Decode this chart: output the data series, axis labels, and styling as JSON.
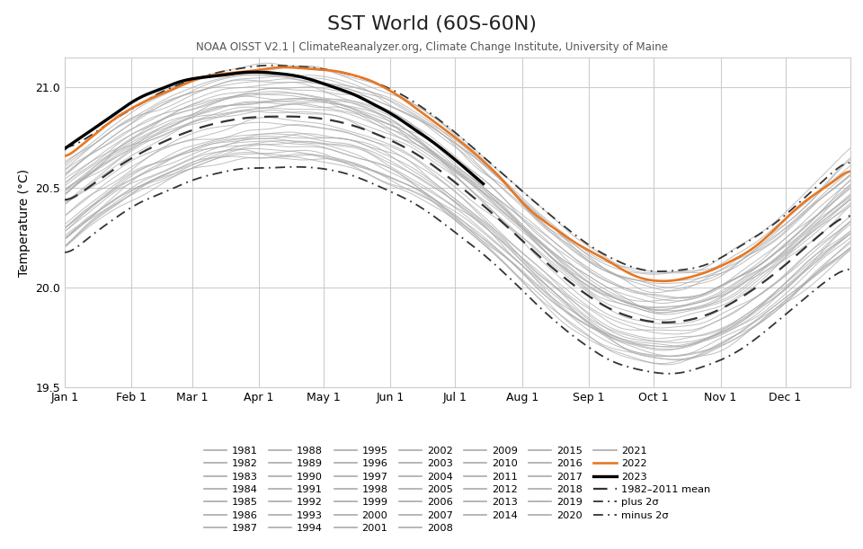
{
  "title": "SST World (60S-60N)",
  "subtitle": "NOAA OISST V2.1 | ClimateReanalyzer.org, Climate Change Institute, University of Maine",
  "ylabel": "Temperature (°C)",
  "ylim": [
    19.5,
    21.15
  ],
  "xlim": [
    1,
    365
  ],
  "background_color": "#ffffff",
  "grid_color": "#cccccc",
  "years_gray": [
    1981,
    1982,
    1983,
    1984,
    1985,
    1986,
    1987,
    1988,
    1989,
    1990,
    1991,
    1992,
    1993,
    1994,
    1995,
    1996,
    1997,
    1998,
    1999,
    2000,
    2001,
    2002,
    2003,
    2004,
    2005,
    2006,
    2007,
    2008,
    2009,
    2010,
    2011,
    2012,
    2013,
    2014,
    2015,
    2016,
    2017,
    2018,
    2019,
    2020,
    2021
  ],
  "year_2022_color": "#e87722",
  "year_2023_color": "#000000",
  "mean_color": "#333333",
  "sigma_color": "#333333",
  "gray_color": "#aaaaaa",
  "tick_months": [
    "Jan 1",
    "Feb 1",
    "Mar 1",
    "Apr 1",
    "May 1",
    "Jun 1",
    "Jul 1",
    "Aug 1",
    "Sep 1",
    "Oct 1",
    "Nov 1",
    "Dec 1"
  ],
  "tick_days": [
    1,
    32,
    60,
    91,
    121,
    152,
    182,
    213,
    244,
    274,
    305,
    335
  ],
  "legend_rows": [
    [
      "1981",
      "1982",
      "1983",
      "1984",
      "1985",
      "1986",
      "1987"
    ],
    [
      "1988",
      "1989",
      "1990",
      "1991",
      "1992",
      "1993",
      "1994"
    ],
    [
      "1995",
      "1996",
      "1997",
      "1998",
      "1999",
      "2000",
      "2001"
    ],
    [
      "2002",
      "2003",
      "2004",
      "2005",
      "2006",
      "2007",
      "2008"
    ],
    [
      "2009",
      "2010",
      "2011",
      "2012",
      "2013",
      "2014",
      "2015"
    ],
    [
      "2016",
      "2017",
      "2018",
      "2019",
      "2020",
      "2021",
      "2022"
    ]
  ],
  "legend_special": [
    "2023",
    "1982–2011 mean",
    "plus 2σ",
    "minus 2σ"
  ]
}
